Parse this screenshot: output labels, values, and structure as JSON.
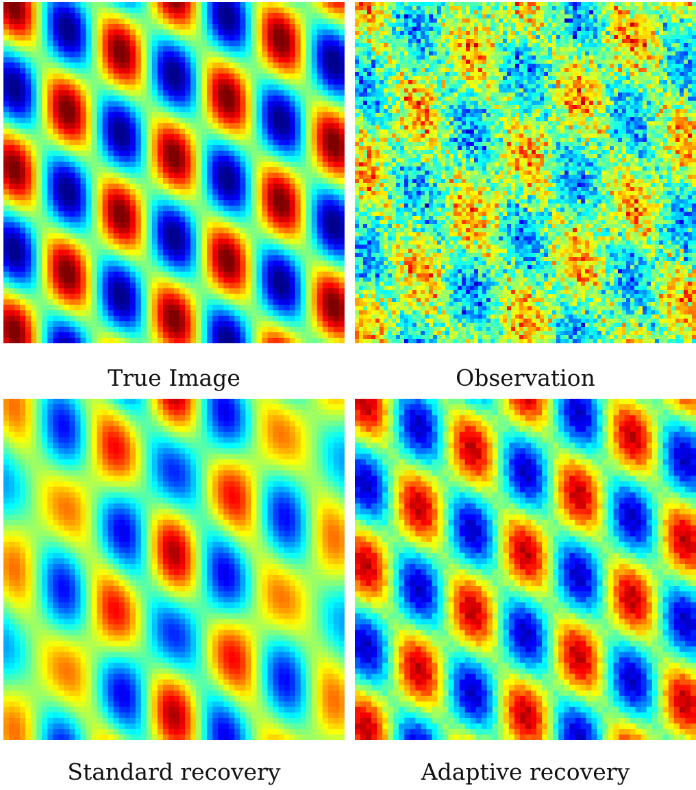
{
  "figure": {
    "colormap": [
      "#00008f",
      "#0000ff",
      "#0080ff",
      "#00ffff",
      "#80ff80",
      "#ffff00",
      "#ff8000",
      "#ff0000",
      "#800000"
    ],
    "panels": [
      {
        "key": "true",
        "caption": "True Image",
        "content": "smooth oscillatory field"
      },
      {
        "key": "observed",
        "caption": "Observation",
        "content": "noisy observation of field"
      },
      {
        "key": "standard",
        "caption": "Standard recovery",
        "content": "blurred reconstruction"
      },
      {
        "key": "adaptive",
        "caption": "Adaptive recovery",
        "content": "sharp reconstruction"
      }
    ]
  }
}
